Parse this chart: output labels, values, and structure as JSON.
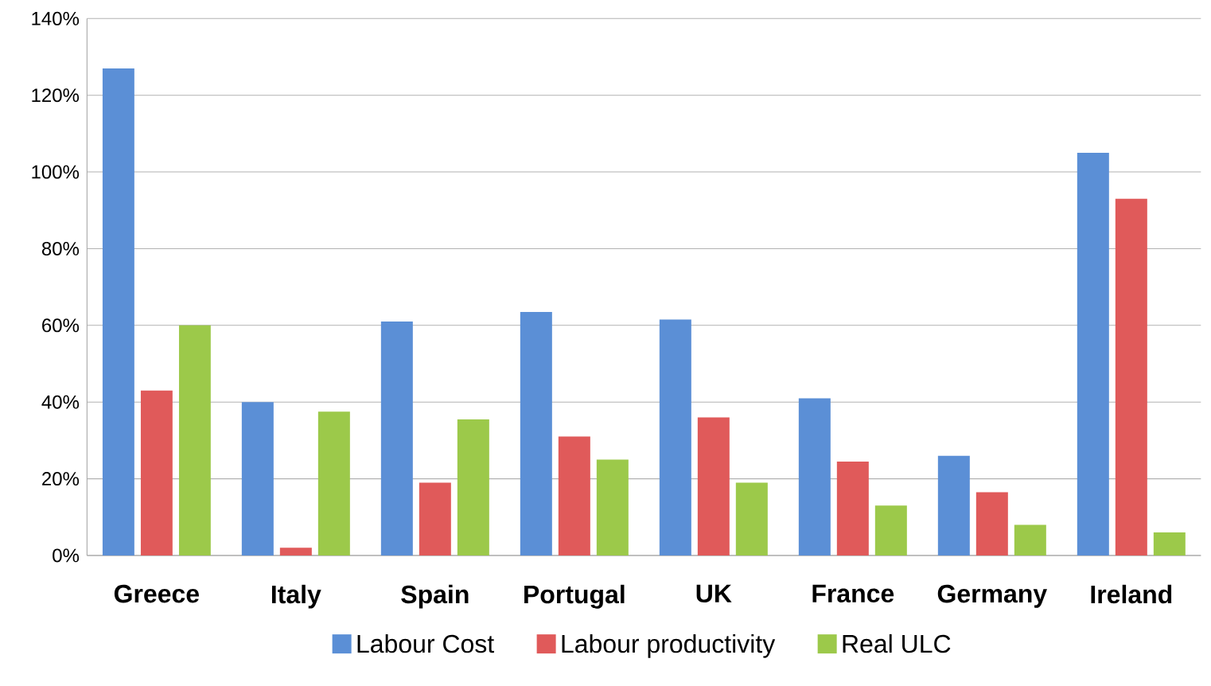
{
  "chart_data": {
    "type": "bar",
    "categories": [
      "Greece",
      "Italy",
      "Spain",
      "Portugal",
      "UK",
      "France",
      "Germany",
      "Ireland"
    ],
    "series": [
      {
        "name": "Labour Cost",
        "color": "#5b8fd6",
        "values": [
          127,
          40,
          61,
          63.5,
          61.5,
          41,
          26,
          105
        ]
      },
      {
        "name": "Labour productivity",
        "color": "#e05a5a",
        "values": [
          43,
          2,
          19,
          31,
          36,
          24.5,
          16.5,
          93
        ]
      },
      {
        "name": "Real ULC",
        "color": "#9cc94a",
        "values": [
          60,
          37.5,
          35.5,
          25,
          19,
          13,
          8,
          6
        ]
      }
    ],
    "ylim": [
      0,
      140
    ],
    "yticks": [
      {
        "value": 0,
        "label": "0%"
      },
      {
        "value": 20,
        "label": "20%"
      },
      {
        "value": 40,
        "label": "40%"
      },
      {
        "value": 60,
        "label": "60%"
      },
      {
        "value": 80,
        "label": "80%"
      },
      {
        "value": 100,
        "label": "100%"
      },
      {
        "value": 120,
        "label": "120%"
      },
      {
        "value": 140,
        "label": "140%"
      }
    ],
    "grid": "y",
    "legend": "bottom"
  }
}
